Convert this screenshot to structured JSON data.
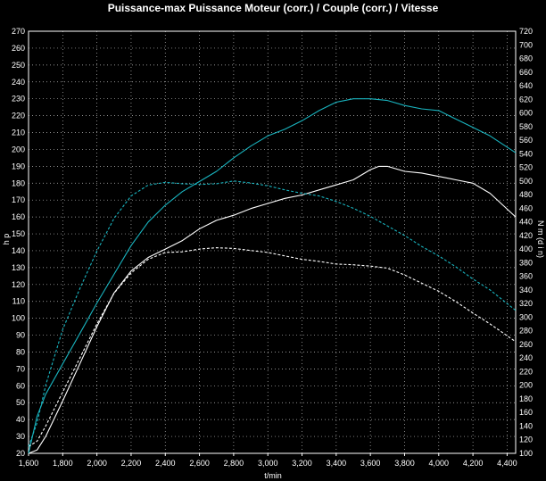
{
  "chart_data": {
    "type": "line",
    "title": "Puissance-max Puissance Moteur (corr.) / Couple (corr.) / Vitesse",
    "xlabel": "t/min",
    "ylabel_left": "h p",
    "ylabel_right": "N m (d i n)",
    "xlim": [
      1600,
      4450
    ],
    "ylim_left": [
      20,
      270
    ],
    "ylim_right": [
      100,
      720
    ],
    "x_ticks": [
      1600,
      1800,
      2000,
      2200,
      2400,
      2600,
      2800,
      3000,
      3200,
      3400,
      3600,
      3800,
      4000,
      4200,
      4400
    ],
    "x_tick_labels": [
      "1,600",
      "1,800",
      "2,000",
      "2,200",
      "2,400",
      "2,600",
      "2,800",
      "3,000",
      "3,200",
      "3,400",
      "3,600",
      "3,800",
      "4,000",
      "4,200",
      "4,400"
    ],
    "y_left_ticks": [
      20,
      30,
      40,
      50,
      60,
      70,
      80,
      90,
      100,
      110,
      120,
      130,
      140,
      150,
      160,
      170,
      180,
      190,
      200,
      210,
      220,
      230,
      240,
      250,
      260,
      270
    ],
    "y_right_ticks": [
      100,
      120,
      140,
      160,
      180,
      200,
      220,
      240,
      260,
      280,
      300,
      320,
      340,
      360,
      380,
      400,
      420,
      440,
      460,
      480,
      500,
      520,
      540,
      560,
      580,
      600,
      620,
      640,
      660,
      680,
      700,
      720
    ],
    "grid": true,
    "series": [
      {
        "axis": "left",
        "color": "#ffffff",
        "style": "solid",
        "x": [
          1600,
          1650,
          1700,
          1800,
          1900,
          2000,
          2100,
          2200,
          2300,
          2400,
          2500,
          2600,
          2700,
          2800,
          2900,
          3000,
          3100,
          3200,
          3300,
          3400,
          3500,
          3600,
          3650,
          3700,
          3800,
          3900,
          4000,
          4100,
          4200,
          4300,
          4450
        ],
        "y": [
          20,
          22,
          30,
          51,
          73,
          95,
          115,
          128,
          136,
          141,
          146,
          153,
          158,
          161,
          165,
          168,
          171,
          173,
          176,
          179,
          182,
          188,
          190,
          190,
          187,
          186,
          184,
          182,
          180,
          174,
          160
        ]
      },
      {
        "axis": "left",
        "color": "#19b4bf",
        "style": "solid",
        "x": [
          1600,
          1650,
          1700,
          1800,
          1900,
          2000,
          2100,
          2200,
          2300,
          2400,
          2500,
          2600,
          2700,
          2800,
          2900,
          3000,
          3100,
          3200,
          3300,
          3400,
          3500,
          3600,
          3700,
          3800,
          3900,
          4000,
          4100,
          4200,
          4300,
          4450
        ],
        "y": [
          20,
          42,
          55,
          73,
          91,
          109,
          126,
          143,
          157,
          167,
          175,
          181,
          187,
          195,
          202,
          208,
          212,
          217,
          223,
          228,
          230,
          230,
          229,
          226,
          224,
          223,
          218,
          213,
          208,
          198
        ]
      },
      {
        "axis": "right",
        "color": "#ffffff",
        "style": "dashed",
        "x": [
          1600,
          1650,
          1700,
          1800,
          1900,
          2000,
          2100,
          2200,
          2300,
          2400,
          2500,
          2600,
          2700,
          2800,
          2900,
          3000,
          3100,
          3200,
          3300,
          3400,
          3500,
          3600,
          3700,
          3800,
          3900,
          4000,
          4100,
          4200,
          4300,
          4450
        ],
        "y": [
          110,
          118,
          140,
          190,
          240,
          290,
          335,
          365,
          385,
          395,
          396,
          400,
          402,
          401,
          398,
          395,
          390,
          385,
          382,
          378,
          377,
          375,
          372,
          362,
          350,
          338,
          323,
          306,
          290,
          264
        ]
      },
      {
        "axis": "right",
        "color": "#19b4bf",
        "style": "dashed",
        "x": [
          1600,
          1650,
          1700,
          1800,
          1900,
          2000,
          2100,
          2200,
          2300,
          2400,
          2500,
          2600,
          2700,
          2800,
          2900,
          3000,
          3100,
          3200,
          3300,
          3400,
          3500,
          3600,
          3700,
          3800,
          3900,
          4000,
          4100,
          4200,
          4300,
          4450
        ],
        "y": [
          110,
          145,
          200,
          282,
          342,
          397,
          445,
          478,
          494,
          498,
          496,
          495,
          496,
          500,
          497,
          493,
          487,
          482,
          478,
          470,
          460,
          448,
          434,
          420,
          404,
          390,
          374,
          356,
          340,
          310
        ]
      }
    ]
  }
}
